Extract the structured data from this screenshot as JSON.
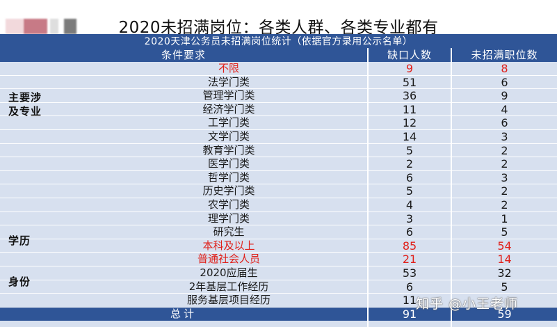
{
  "slide": {
    "title": "2020未招满岗位：各类人群、各类专业都有"
  },
  "table": {
    "caption": "2020天津公务员未招满岗位统计（依据官方录用公示名单）",
    "headers": {
      "condition": "条件要求",
      "shortage": "缺口人数",
      "positions": "未招满职位数"
    },
    "groups": {
      "major": "主要涉及专业",
      "education": "学历",
      "identity": "身份"
    },
    "rows": [
      {
        "condition": "不限",
        "shortage": "9",
        "positions": "8",
        "highlight": true
      },
      {
        "condition": "法学门类",
        "shortage": "51",
        "positions": "6",
        "highlight": false
      },
      {
        "condition": "管理学门类",
        "shortage": "36",
        "positions": "9",
        "highlight": false
      },
      {
        "condition": "经济学门类",
        "shortage": "11",
        "positions": "4",
        "highlight": false
      },
      {
        "condition": "工学门类",
        "shortage": "12",
        "positions": "6",
        "highlight": false
      },
      {
        "condition": "文学门类",
        "shortage": "14",
        "positions": "3",
        "highlight": false
      },
      {
        "condition": "教育学门类",
        "shortage": "5",
        "positions": "2",
        "highlight": false
      },
      {
        "condition": "医学门类",
        "shortage": "2",
        "positions": "2",
        "highlight": false
      },
      {
        "condition": "哲学门类",
        "shortage": "6",
        "positions": "3",
        "highlight": false
      },
      {
        "condition": "历史学门类",
        "shortage": "5",
        "positions": "2",
        "highlight": false
      },
      {
        "condition": "农学门类",
        "shortage": "4",
        "positions": "2",
        "highlight": false
      },
      {
        "condition": "理学门类",
        "shortage": "3",
        "positions": "1",
        "highlight": false
      },
      {
        "condition": "研究生",
        "shortage": "6",
        "positions": "5",
        "highlight": false
      },
      {
        "condition": "本科及以上",
        "shortage": "85",
        "positions": "54",
        "highlight": true
      },
      {
        "condition": "普通社会人员",
        "shortage": "21",
        "positions": "14",
        "highlight": true
      },
      {
        "condition": "2020应届生",
        "shortage": "53",
        "positions": "32",
        "highlight": false
      },
      {
        "condition": "2年基层工作经历",
        "shortage": "6",
        "positions": "5",
        "highlight": false
      },
      {
        "condition": "服务基层项目经历",
        "shortage": "11",
        "positions": "",
        "highlight": false
      }
    ],
    "total": {
      "condition": "总计",
      "shortage": "91",
      "positions": "59"
    }
  },
  "watermark": "知乎 @小王老师",
  "colors": {
    "header_blue": "#2f5597",
    "row_bg": "#d7e0ef",
    "highlight_red": "#e0201a"
  }
}
